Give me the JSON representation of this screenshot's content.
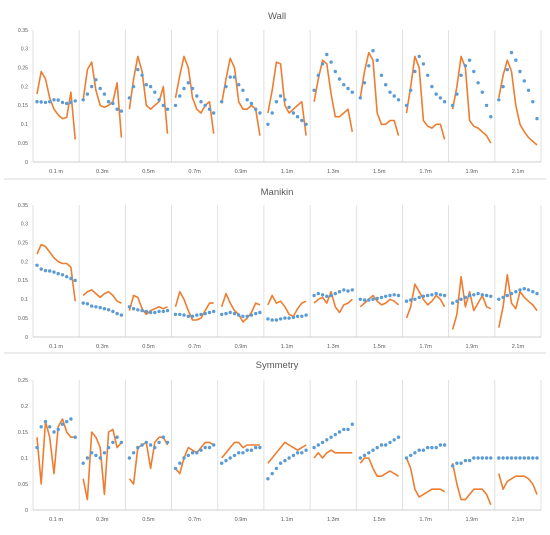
{
  "chart_data": [
    {
      "type": "line",
      "title": "Wall",
      "ylim": [
        0,
        0.35
      ],
      "yticks": [
        "0",
        "0.05",
        "0.1",
        "0.15",
        "0.2",
        "0.25",
        "0.3",
        "0.35"
      ],
      "categories": [
        "0.1 m",
        "0.3m",
        "0.5m",
        "0.7m",
        "0.9m",
        "1.1m",
        "1.3m",
        "1.5m",
        "1.7m",
        "1.9m",
        "2.1m"
      ],
      "grid": "vertical group separators",
      "series": [
        {
          "style": "dots",
          "color": "#5B9BD5",
          "groups": [
            [
              0.16,
              0.159,
              0.158,
              0.16,
              0.165,
              0.164,
              0.158,
              0.155,
              0.158,
              0.162
            ],
            [
              0.165,
              0.18,
              0.2,
              0.218,
              0.195,
              0.18,
              0.16,
              0.155,
              0.14,
              0.135
            ],
            [
              0.17,
              0.2,
              0.245,
              0.23,
              0.205,
              0.2,
              0.185,
              0.165,
              0.15,
              0.14
            ],
            [
              0.15,
              0.175,
              0.195,
              0.21,
              0.195,
              0.175,
              0.16,
              0.15,
              0.14,
              0.13
            ],
            [
              0.16,
              0.2,
              0.225,
              0.225,
              0.205,
              0.19,
              0.165,
              0.155,
              0.14,
              0.13
            ],
            [
              0.1,
              0.13,
              0.16,
              0.175,
              0.165,
              0.145,
              0.13,
              0.12,
              0.11,
              0.1
            ],
            [
              0.19,
              0.23,
              0.26,
              0.285,
              0.265,
              0.24,
              0.22,
              0.205,
              0.195,
              0.185
            ],
            [
              0.17,
              0.21,
              0.255,
              0.295,
              0.27,
              0.23,
              0.205,
              0.185,
              0.175,
              0.165
            ],
            [
              0.15,
              0.19,
              0.24,
              0.28,
              0.26,
              0.23,
              0.2,
              0.18,
              0.17,
              0.16
            ],
            [
              0.15,
              0.18,
              0.23,
              0.255,
              0.27,
              0.24,
              0.21,
              0.185,
              0.15,
              0.12
            ],
            [
              0.165,
              0.2,
              0.245,
              0.29,
              0.27,
              0.24,
              0.215,
              0.19,
              0.16,
              0.115
            ]
          ]
        },
        {
          "style": "line",
          "color": "#ED7D31",
          "groups": [
            [
              0.18,
              0.24,
              0.22,
              0.17,
              0.14,
              0.125,
              0.115,
              0.118,
              0.185,
              0.06
            ],
            [
              0.165,
              0.245,
              0.265,
              0.19,
              0.15,
              0.145,
              0.15,
              0.16,
              0.21,
              0.065
            ],
            [
              0.14,
              0.22,
              0.28,
              0.24,
              0.15,
              0.14,
              0.15,
              0.16,
              0.2,
              0.075
            ],
            [
              0.17,
              0.23,
              0.28,
              0.25,
              0.17,
              0.14,
              0.13,
              0.15,
              0.16,
              0.075
            ],
            [
              0.155,
              0.22,
              0.275,
              0.25,
              0.16,
              0.14,
              0.14,
              0.15,
              0.14,
              0.07
            ],
            [
              0.13,
              0.19,
              0.265,
              0.26,
              0.15,
              0.13,
              0.14,
              0.15,
              0.16,
              0.07
            ],
            [
              0.16,
              0.22,
              0.27,
              0.26,
              0.18,
              0.12,
              0.12,
              0.13,
              0.14,
              0.08
            ],
            [
              0.17,
              0.24,
              0.29,
              0.27,
              0.13,
              0.1,
              0.1,
              0.11,
              0.11,
              0.07
            ],
            [
              0.13,
              0.2,
              0.28,
              0.25,
              0.11,
              0.095,
              0.09,
              0.1,
              0.1,
              0.06
            ],
            [
              0.14,
              0.2,
              0.28,
              0.25,
              0.11,
              0.095,
              0.09,
              0.08,
              0.07,
              0.05
            ],
            [
              0.17,
              0.23,
              0.27,
              0.24,
              0.15,
              0.1,
              0.08,
              0.065,
              0.055,
              0.045
            ]
          ]
        }
      ]
    },
    {
      "type": "line",
      "title": "Manikin",
      "ylim": [
        0,
        0.35
      ],
      "yticks": [
        "0",
        "0.05",
        "0.1",
        "0.15",
        "0.2",
        "0.25",
        "0.3",
        "0.35"
      ],
      "categories": [
        "0.1 m",
        "0.3m",
        "0.5m",
        "0.7m",
        "0.9m",
        "1.1m",
        "1.3m",
        "1.5m",
        "1.7m",
        "1.9m",
        "2.1m"
      ],
      "grid": "vertical group separators",
      "series": [
        {
          "style": "dots",
          "color": "#5B9BD5",
          "groups": [
            [
              0.19,
              0.18,
              0.176,
              0.175,
              0.172,
              0.168,
              0.165,
              0.16,
              0.155,
              0.15
            ],
            [
              0.09,
              0.088,
              0.082,
              0.08,
              0.078,
              0.075,
              0.072,
              0.068,
              0.062,
              0.058
            ],
            [
              0.08,
              0.075,
              0.072,
              0.07,
              0.068,
              0.065,
              0.065,
              0.068,
              0.068,
              0.07
            ],
            [
              0.06,
              0.06,
              0.058,
              0.055,
              0.055,
              0.058,
              0.06,
              0.062,
              0.065,
              0.068
            ],
            [
              0.06,
              0.062,
              0.065,
              0.062,
              0.058,
              0.055,
              0.055,
              0.058,
              0.062,
              0.065
            ],
            [
              0.048,
              0.045,
              0.045,
              0.048,
              0.05,
              0.05,
              0.052,
              0.055,
              0.055,
              0.058
            ],
            [
              0.11,
              0.115,
              0.112,
              0.108,
              0.11,
              0.115,
              0.12,
              0.125,
              0.122,
              0.125
            ],
            [
              0.1,
              0.098,
              0.098,
              0.1,
              0.102,
              0.105,
              0.108,
              0.11,
              0.112,
              0.11
            ],
            [
              0.095,
              0.098,
              0.1,
              0.105,
              0.108,
              0.11,
              0.112,
              0.115,
              0.112,
              0.11
            ],
            [
              0.09,
              0.095,
              0.1,
              0.105,
              0.11,
              0.112,
              0.115,
              0.112,
              0.11,
              0.108
            ],
            [
              0.1,
              0.105,
              0.11,
              0.115,
              0.12,
              0.125,
              0.128,
              0.125,
              0.12,
              0.115
            ]
          ]
        },
        {
          "style": "line",
          "color": "#ED7D31",
          "groups": [
            [
              0.22,
              0.245,
              0.24,
              0.225,
              0.21,
              0.2,
              0.195,
              0.195,
              0.185,
              0.095
            ],
            [
              0.11,
              0.12,
              0.125,
              0.115,
              0.105,
              0.115,
              0.12,
              0.11,
              0.095,
              0.09
            ],
            [
              0.07,
              0.11,
              0.105,
              0.075,
              0.06,
              0.07,
              0.075,
              0.08,
              0.075,
              0.08
            ],
            [
              0.08,
              0.12,
              0.1,
              0.07,
              0.045,
              0.045,
              0.05,
              0.07,
              0.09,
              0.09
            ],
            [
              0.08,
              0.115,
              0.09,
              0.07,
              0.06,
              0.04,
              0.05,
              0.065,
              0.09,
              0.085
            ],
            [
              0.085,
              0.11,
              0.09,
              0.095,
              0.08,
              0.06,
              0.055,
              0.075,
              0.09,
              0.095
            ],
            [
              0.09,
              0.1,
              0.105,
              0.09,
              0.12,
              0.08,
              0.065,
              0.085,
              0.09,
              0.1
            ],
            [
              0.08,
              0.09,
              0.1,
              0.11,
              0.095,
              0.085,
              0.09,
              0.1,
              0.095,
              0.085
            ],
            [
              0.05,
              0.08,
              0.14,
              0.12,
              0.1,
              0.085,
              0.095,
              0.11,
              0.1,
              0.08
            ],
            [
              0.02,
              0.06,
              0.16,
              0.08,
              0.12,
              0.07,
              0.09,
              0.11,
              0.08,
              0.075
            ],
            [
              0.025,
              0.08,
              0.165,
              0.09,
              0.075,
              0.12,
              0.105,
              0.095,
              0.085,
              0.07
            ]
          ]
        }
      ]
    },
    {
      "type": "line",
      "title": "Symmetry",
      "ylim": [
        0,
        0.25
      ],
      "yticks": [
        "0",
        "0.05",
        "0.1",
        "0.15",
        "0.2",
        "0.25"
      ],
      "categories": [
        "0.1 m",
        "0.3m",
        "0.5m",
        "0.7m",
        "0.9m",
        "1.1m",
        "1.3m",
        "1.5m",
        "1.7m",
        "1.9m",
        "2.1m"
      ],
      "grid": "vertical group separators",
      "series": [
        {
          "style": "dots",
          "color": "#5B9BD5",
          "groups": [
            [
              0.12,
              0.16,
              0.17,
              0.16,
              0.15,
              0.155,
              0.165,
              0.17,
              0.175,
              0.14
            ],
            [
              0.09,
              0.1,
              0.11,
              0.105,
              0.1,
              0.11,
              0.12,
              0.13,
              0.14,
              0.13
            ],
            [
              0.1,
              0.11,
              0.12,
              0.125,
              0.13,
              0.125,
              0.12,
              0.13,
              0.14,
              0.13
            ],
            [
              0.08,
              0.09,
              0.1,
              0.105,
              0.11,
              0.11,
              0.115,
              0.12,
              0.12,
              0.125
            ],
            [
              0.09,
              0.095,
              0.1,
              0.105,
              0.11,
              0.11,
              0.115,
              0.115,
              0.12,
              0.12
            ],
            [
              0.06,
              0.07,
              0.08,
              0.09,
              0.095,
              0.1,
              0.105,
              0.11,
              0.11,
              0.115
            ],
            [
              0.12,
              0.125,
              0.13,
              0.135,
              0.14,
              0.145,
              0.15,
              0.155,
              0.155,
              0.165
            ],
            [
              0.1,
              0.105,
              0.11,
              0.115,
              0.12,
              0.125,
              0.125,
              0.13,
              0.135,
              0.14
            ],
            [
              0.1,
              0.105,
              0.11,
              0.115,
              0.115,
              0.12,
              0.12,
              0.12,
              0.125,
              0.125
            ],
            [
              0.085,
              0.09,
              0.09,
              0.095,
              0.095,
              0.1,
              0.1,
              0.1,
              0.1,
              0.1
            ],
            [
              0.1,
              0.1,
              0.1,
              0.1,
              0.1,
              0.1,
              0.1,
              0.1,
              0.1,
              0.1
            ]
          ]
        },
        {
          "style": "line",
          "color": "#ED7D31",
          "groups": [
            [
              0.14,
              0.05,
              0.17,
              0.14,
              0.07,
              0.16,
              0.175,
              0.15,
              0.14,
              0.14
            ],
            [
              0.06,
              0.02,
              0.15,
              0.14,
              0.12,
              0.03,
              0.15,
              0.155,
              0.12,
              0.13
            ],
            [
              0.06,
              0.05,
              0.12,
              0.125,
              0.13,
              0.08,
              0.13,
              0.14,
              0.14,
              0.125
            ],
            [
              0.08,
              0.07,
              0.1,
              0.12,
              0.115,
              0.11,
              0.12,
              0.13,
              0.13,
              0.125
            ],
            [
              0.1,
              0.11,
              0.12,
              0.13,
              0.13,
              0.12,
              0.125,
              0.125,
              0.125,
              0.125
            ],
            [
              0.09,
              0.1,
              0.11,
              0.12,
              0.13,
              0.125,
              0.12,
              0.115,
              0.12,
              0.125
            ],
            [
              0.1,
              0.11,
              0.1,
              0.11,
              0.115,
              0.11,
              0.11,
              0.11,
              0.11,
              0.11
            ],
            [
              0.09,
              0.1,
              0.1,
              0.08,
              0.065,
              0.065,
              0.07,
              0.075,
              0.07,
              0.065
            ],
            [
              0.1,
              0.08,
              0.04,
              0.025,
              0.03,
              0.035,
              0.04,
              0.04,
              0.04,
              0.035
            ],
            [
              0.09,
              0.05,
              0.02,
              0.02,
              0.03,
              0.04,
              0.04,
              0.04,
              0.03,
              0.01
            ],
            [
              0.07,
              0.04,
              0.055,
              0.06,
              0.065,
              0.065,
              0.065,
              0.06,
              0.05,
              0.03
            ]
          ]
        }
      ]
    }
  ]
}
